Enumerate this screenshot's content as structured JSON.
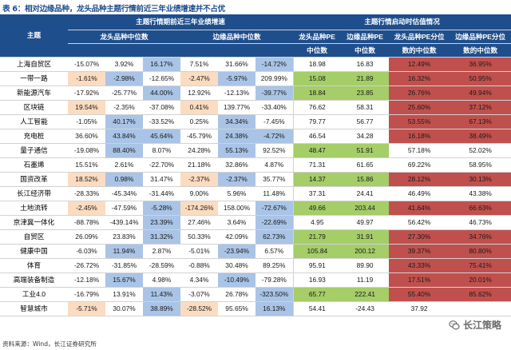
{
  "caption": "表 6：相对边缘品种，龙头品种主题行情前近三年业绩增速并不占优",
  "header": {
    "theme": "主题",
    "group_growth": "主题行情期前近三年业绩增速",
    "group_valuation": "主题行情启动时估值情况",
    "leader_median_growth": "龙头品种中位数",
    "edge_median_growth": "边缘品种中位数",
    "leader_pe": "龙头品种PE",
    "edge_pe": "边缘品种PE",
    "median": "中位数",
    "leader_pe_pct": "龙头品种PE分位",
    "edge_pe_pct": "边缘品种PE分位",
    "pct_median": "数的中位数"
  },
  "colors": {
    "header_bg": "#1f4e8c",
    "blue_highlight": "#a9c4e6",
    "orange_highlight": "#fbdcc0",
    "green_highlight": "#a5cd68",
    "red_highlight": "#c0504d"
  },
  "rows": [
    {
      "name": "上海自贸区",
      "cells": [
        {
          "v": "-15.07%"
        },
        {
          "v": "3.92%"
        },
        {
          "v": "16.17%",
          "c": "blue"
        },
        {
          "v": "7.51%"
        },
        {
          "v": "31.66%"
        },
        {
          "v": "-14.72%",
          "c": "blue"
        },
        {
          "v": "18.98"
        },
        {
          "v": "16.83"
        },
        {
          "v": "12.49%",
          "c": "red"
        },
        {
          "v": "36.95%",
          "c": "red"
        }
      ]
    },
    {
      "name": "一带一路",
      "cells": [
        {
          "v": "-1.61%",
          "c": "orange"
        },
        {
          "v": "-2.98%",
          "c": "blue"
        },
        {
          "v": "-12.65%"
        },
        {
          "v": "-2.47%",
          "c": "orange"
        },
        {
          "v": "-5.97%",
          "c": "blue"
        },
        {
          "v": "209.99%"
        },
        {
          "v": "15.08",
          "c": "green"
        },
        {
          "v": "21.89",
          "c": "green"
        },
        {
          "v": "16.32%",
          "c": "red"
        },
        {
          "v": "50.95%",
          "c": "red"
        }
      ]
    },
    {
      "name": "新能源汽车",
      "cells": [
        {
          "v": "-17.92%"
        },
        {
          "v": "-25.77%"
        },
        {
          "v": "44.00%",
          "c": "blue"
        },
        {
          "v": "12.92%"
        },
        {
          "v": "-12.13%"
        },
        {
          "v": "-39.77%",
          "c": "blue"
        },
        {
          "v": "18.84",
          "c": "green"
        },
        {
          "v": "23.85",
          "c": "green"
        },
        {
          "v": "26.76%",
          "c": "red"
        },
        {
          "v": "49.94%",
          "c": "red"
        }
      ]
    },
    {
      "name": "区块链",
      "cells": [
        {
          "v": "19.54%",
          "c": "orange"
        },
        {
          "v": "-2.35%"
        },
        {
          "v": "-37.08%"
        },
        {
          "v": "0.41%",
          "c": "orange"
        },
        {
          "v": "139.77%"
        },
        {
          "v": "-33.40%"
        },
        {
          "v": "76.62"
        },
        {
          "v": "58.31"
        },
        {
          "v": "25.60%",
          "c": "red"
        },
        {
          "v": "37.12%",
          "c": "red"
        }
      ]
    },
    {
      "name": "人工智能",
      "cells": [
        {
          "v": "-1.05%"
        },
        {
          "v": "40.17%",
          "c": "blue"
        },
        {
          "v": "-33.52%"
        },
        {
          "v": "0.25%"
        },
        {
          "v": "34.34%",
          "c": "blue"
        },
        {
          "v": "-7.45%"
        },
        {
          "v": "79.77"
        },
        {
          "v": "56.77"
        },
        {
          "v": "53.55%",
          "c": "red"
        },
        {
          "v": "67.13%",
          "c": "red"
        }
      ]
    },
    {
      "name": "充电桩",
      "cells": [
        {
          "v": "36.60%"
        },
        {
          "v": "43.84%",
          "c": "blue"
        },
        {
          "v": "45.64%",
          "c": "blue"
        },
        {
          "v": "-45.79%"
        },
        {
          "v": "24.38%",
          "c": "blue"
        },
        {
          "v": "-4.72%",
          "c": "blue"
        },
        {
          "v": "46.54"
        },
        {
          "v": "34.28"
        },
        {
          "v": "16.18%",
          "c": "red"
        },
        {
          "v": "38.49%",
          "c": "red"
        }
      ]
    },
    {
      "name": "量子通信",
      "cells": [
        {
          "v": "-19.08%"
        },
        {
          "v": "88.40%",
          "c": "blue"
        },
        {
          "v": "8.07%"
        },
        {
          "v": "24.28%"
        },
        {
          "v": "55.13%",
          "c": "blue"
        },
        {
          "v": "92.52%"
        },
        {
          "v": "48.47",
          "c": "green"
        },
        {
          "v": "51.91",
          "c": "green"
        },
        {
          "v": "57.18%"
        },
        {
          "v": "52.02%"
        }
      ]
    },
    {
      "name": "石墨烯",
      "cells": [
        {
          "v": "15.51%"
        },
        {
          "v": "2.61%"
        },
        {
          "v": "-22.70%"
        },
        {
          "v": "21.18%"
        },
        {
          "v": "32.86%"
        },
        {
          "v": "4.87%"
        },
        {
          "v": "71.31"
        },
        {
          "v": "61.65"
        },
        {
          "v": "69.22%"
        },
        {
          "v": "58.95%"
        }
      ]
    },
    {
      "name": "国资改革",
      "cells": [
        {
          "v": "18.52%",
          "c": "orange"
        },
        {
          "v": "0.98%",
          "c": "blue"
        },
        {
          "v": "31.47%"
        },
        {
          "v": "-2.37%",
          "c": "orange"
        },
        {
          "v": "-2.37%",
          "c": "blue"
        },
        {
          "v": "35.77%"
        },
        {
          "v": "14.37",
          "c": "green"
        },
        {
          "v": "15.86",
          "c": "green"
        },
        {
          "v": "28.12%",
          "c": "red"
        },
        {
          "v": "30.13%",
          "c": "red"
        }
      ]
    },
    {
      "name": "长江经济带",
      "cells": [
        {
          "v": "-28.33%"
        },
        {
          "v": "-45.34%"
        },
        {
          "v": "-31.44%"
        },
        {
          "v": "9.00%"
        },
        {
          "v": "5.96%"
        },
        {
          "v": "11.48%"
        },
        {
          "v": "37.31"
        },
        {
          "v": "24.41"
        },
        {
          "v": "46.49%"
        },
        {
          "v": "43.38%"
        }
      ]
    },
    {
      "name": "土地流转",
      "cells": [
        {
          "v": "-2.45%",
          "c": "orange"
        },
        {
          "v": "-47.59%"
        },
        {
          "v": "-5.28%",
          "c": "blue"
        },
        {
          "v": "-174.26%",
          "c": "orange"
        },
        {
          "v": "158.00%"
        },
        {
          "v": "-72.67%",
          "c": "blue"
        },
        {
          "v": "49.66",
          "c": "green"
        },
        {
          "v": "203.44",
          "c": "green"
        },
        {
          "v": "41.64%",
          "c": "red"
        },
        {
          "v": "66.63%",
          "c": "red"
        }
      ]
    },
    {
      "name": "京津冀一体化",
      "cells": [
        {
          "v": "-88.78%"
        },
        {
          "v": "-439.14%"
        },
        {
          "v": "23.39%",
          "c": "blue"
        },
        {
          "v": "27.46%"
        },
        {
          "v": "3.64%"
        },
        {
          "v": "-22.69%",
          "c": "blue"
        },
        {
          "v": "4.95"
        },
        {
          "v": "49.97"
        },
        {
          "v": "56.42%"
        },
        {
          "v": "46.73%"
        }
      ]
    },
    {
      "name": "自贸区",
      "cells": [
        {
          "v": "26.09%"
        },
        {
          "v": "23.83%"
        },
        {
          "v": "31.32%",
          "c": "blue"
        },
        {
          "v": "50.33%"
        },
        {
          "v": "42.09%"
        },
        {
          "v": "62.73%",
          "c": "blue"
        },
        {
          "v": "21.79",
          "c": "green"
        },
        {
          "v": "31.91",
          "c": "green"
        },
        {
          "v": "27.30%",
          "c": "red"
        },
        {
          "v": "34.76%",
          "c": "red"
        }
      ]
    },
    {
      "name": "健康中国",
      "cells": [
        {
          "v": "-6.03%"
        },
        {
          "v": "11.94%",
          "c": "blue"
        },
        {
          "v": "2.87%"
        },
        {
          "v": "-5.01%"
        },
        {
          "v": "-23.94%",
          "c": "blue"
        },
        {
          "v": "6.57%"
        },
        {
          "v": "105.84",
          "c": "green"
        },
        {
          "v": "200.12",
          "c": "green"
        },
        {
          "v": "39.37%",
          "c": "red"
        },
        {
          "v": "80.80%",
          "c": "red"
        }
      ]
    },
    {
      "name": "体育",
      "cells": [
        {
          "v": "-26.72%"
        },
        {
          "v": "-31.85%"
        },
        {
          "v": "-28.59%"
        },
        {
          "v": "-0.88%"
        },
        {
          "v": "30.48%"
        },
        {
          "v": "89.25%"
        },
        {
          "v": "95.91"
        },
        {
          "v": "89.90"
        },
        {
          "v": "43.33%",
          "c": "red"
        },
        {
          "v": "75.41%",
          "c": "red"
        }
      ]
    },
    {
      "name": "高端装备制造",
      "cells": [
        {
          "v": "-12.18%"
        },
        {
          "v": "15.67%",
          "c": "blue"
        },
        {
          "v": "4.98%"
        },
        {
          "v": "4.34%"
        },
        {
          "v": "-10.49%",
          "c": "blue"
        },
        {
          "v": "-79.28%"
        },
        {
          "v": "16.93"
        },
        {
          "v": "11.19"
        },
        {
          "v": "17.51%",
          "c": "red"
        },
        {
          "v": "20.01%",
          "c": "red"
        }
      ]
    },
    {
      "name": "工业4.0",
      "cells": [
        {
          "v": "-16.79%"
        },
        {
          "v": "13.91%"
        },
        {
          "v": "11.43%",
          "c": "blue"
        },
        {
          "v": "-3.07%"
        },
        {
          "v": "26.78%"
        },
        {
          "v": "-323.50%",
          "c": "blue"
        },
        {
          "v": "65.77",
          "c": "green"
        },
        {
          "v": "222.41",
          "c": "green"
        },
        {
          "v": "55.40%",
          "c": "red"
        },
        {
          "v": "85.62%",
          "c": "red"
        }
      ]
    },
    {
      "name": "智慧城市",
      "cells": [
        {
          "v": "-5.71%",
          "c": "orange"
        },
        {
          "v": "30.07%"
        },
        {
          "v": "38.89%",
          "c": "blue"
        },
        {
          "v": "-28.52%",
          "c": "orange"
        },
        {
          "v": "95.65%"
        },
        {
          "v": "16.13%",
          "c": "blue"
        },
        {
          "v": "54.41"
        },
        {
          "v": "-24.43"
        },
        {
          "v": "37.92"
        },
        {
          "v": ""
        }
      ]
    }
  ],
  "source": "资料来源：Wind，长江证券研究所",
  "watermark": "长江策略"
}
